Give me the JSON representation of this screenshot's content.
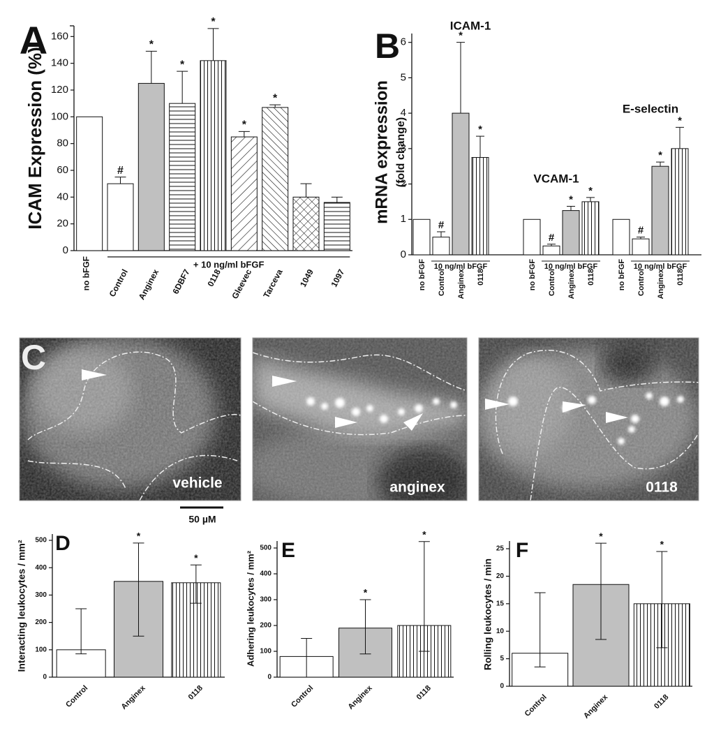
{
  "chart_data": [
    {
      "type": "bar",
      "letter": "A",
      "ylabel": "ICAM Expression (%)",
      "categories": [
        "no bFGF",
        "Control",
        "Anginex",
        "6DBF7",
        "0118",
        "Gleevec",
        "Tarceva",
        "1049",
        "1097"
      ],
      "values": [
        100,
        50,
        125,
        110,
        142,
        85,
        107,
        40,
        36
      ],
      "errors": [
        null,
        5,
        24,
        24,
        24,
        4,
        2,
        10,
        4
      ],
      "annotations": [
        null,
        "#",
        "*",
        "*",
        "*",
        "*",
        "*",
        null,
        null
      ],
      "fills": [
        "none",
        "none",
        "grey",
        "horizontal",
        "vertical",
        "diag-up",
        "diag-down",
        "cross",
        "horizontal"
      ],
      "bracket_label": "+ 10 ng/ml bFGF",
      "ylim": [
        0,
        168
      ],
      "yticks": [
        0,
        20,
        40,
        60,
        80,
        100,
        120,
        140,
        160
      ]
    },
    {
      "type": "grouped_bar",
      "letter": "B",
      "ylabel": "mRNA expression",
      "ylabel2": "(fold change)",
      "groups": [
        {
          "name": "ICAM-1",
          "bars": [
            "no bFGF",
            "Control",
            "Anginex",
            "0118"
          ],
          "values": [
            1,
            0.5,
            4,
            2.75
          ],
          "errors": [
            null,
            0.15,
            2,
            0.6
          ],
          "annotations": [
            null,
            "#",
            "*",
            "*"
          ],
          "fills": [
            "none",
            "none",
            "grey",
            "vertical"
          ],
          "bracket_label": "10 ng/ml bFGF"
        },
        {
          "name": "VCAM-1",
          "bars": [
            "no bFGF",
            "Control",
            "Anginex",
            "0118"
          ],
          "values": [
            1,
            0.25,
            1.25,
            1.5
          ],
          "errors": [
            null,
            0.05,
            0.12,
            0.12
          ],
          "annotations": [
            null,
            "#",
            "*",
            "*"
          ],
          "fills": [
            "none",
            "none",
            "grey",
            "vertical"
          ],
          "bracket_label": "10 ng/ml bFGF"
        },
        {
          "name": "E-selectin",
          "bars": [
            "no bFGF",
            "Control",
            "Anginex",
            "0118"
          ],
          "values": [
            1,
            0.45,
            2.5,
            3
          ],
          "errors": [
            null,
            0.05,
            0.12,
            0.6
          ],
          "annotations": [
            null,
            "#",
            "*",
            "*"
          ],
          "fills": [
            "none",
            "none",
            "grey",
            "vertical"
          ],
          "bracket_label": "10 ng/ml bFGF"
        }
      ],
      "ylim": [
        0,
        6.25
      ],
      "yticks": [
        0,
        1,
        2,
        3,
        4,
        5,
        6
      ]
    },
    {
      "type": "bar",
      "letter": "D",
      "ylabel": "Interacting leukocytes / mm²",
      "categories": [
        "Control",
        "Anginex",
        "0118"
      ],
      "values": [
        100,
        350,
        345
      ],
      "whisker_low": [
        85,
        150,
        270
      ],
      "whisker_high": [
        250,
        490,
        410
      ],
      "annotations": [
        null,
        "*",
        "*"
      ],
      "fills": [
        "none",
        "grey",
        "vertical"
      ],
      "ylim": [
        0,
        523
      ],
      "yticks": [
        0,
        100,
        200,
        300,
        400,
        500
      ]
    },
    {
      "type": "bar",
      "letter": "E",
      "ylabel": "Adhering leukocytes / mm²",
      "categories": [
        "Control",
        "Anginex",
        "0118"
      ],
      "values": [
        80,
        190,
        200
      ],
      "whisker_low": [
        0,
        90,
        100
      ],
      "whisker_high": [
        150,
        300,
        525
      ],
      "annotations": [
        null,
        "*",
        "*"
      ],
      "fills": [
        "none",
        "grey",
        "vertical"
      ],
      "ylim": [
        0,
        527
      ],
      "yticks": [
        0,
        100,
        200,
        300,
        400,
        500
      ]
    },
    {
      "type": "bar",
      "letter": "F",
      "ylabel": "Rolling leukocytes / min",
      "categories": [
        "Control",
        "Anginex",
        "0118"
      ],
      "values": [
        6,
        18.5,
        15
      ],
      "whisker_low": [
        3.5,
        8.5,
        7
      ],
      "whisker_high": [
        17,
        26,
        24.5
      ],
      "annotations": [
        null,
        "*",
        "*"
      ],
      "fills": [
        "none",
        "grey",
        "vertical"
      ],
      "ylim": [
        0,
        26.4
      ],
      "yticks": [
        0,
        5,
        10,
        15,
        20,
        25
      ]
    }
  ],
  "micrographs": {
    "letter": "C",
    "labels": [
      "vehicle",
      "anginex",
      "0118"
    ],
    "scale_bar": "50 µM"
  }
}
